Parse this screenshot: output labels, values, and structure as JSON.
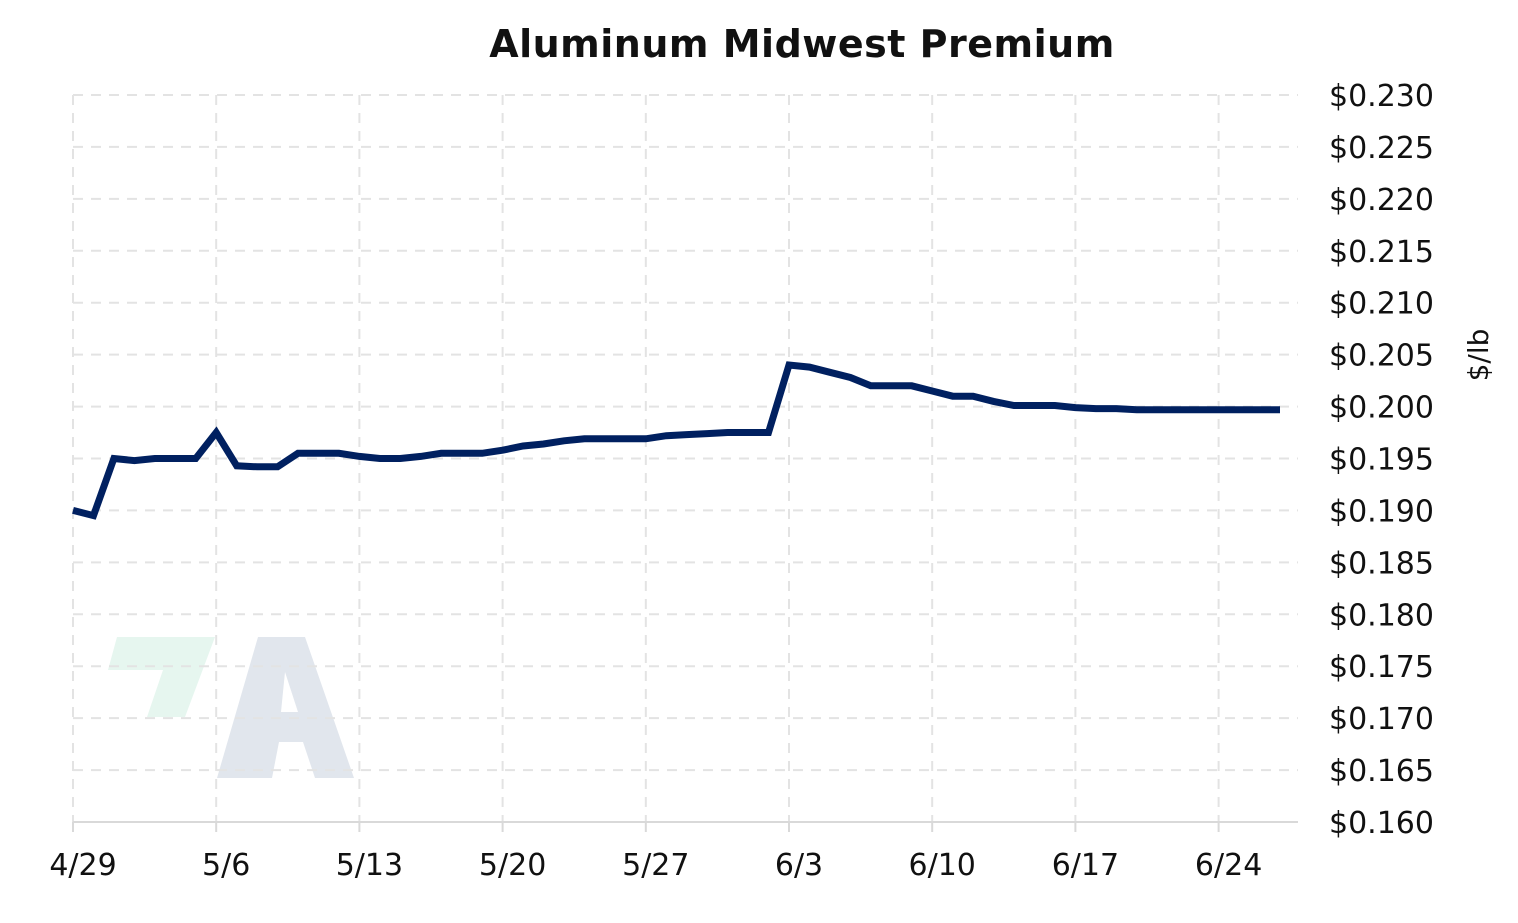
{
  "chart_data": {
    "type": "line",
    "title": "Aluminum Midwest Premium",
    "xlabel": "",
    "ylabel": "$/lb",
    "x_ticks": [
      "4/29",
      "5/6",
      "5/13",
      "5/20",
      "5/27",
      "6/3",
      "6/10",
      "6/17",
      "6/24"
    ],
    "y_ticks": [
      "$0.230",
      "$0.225",
      "$0.220",
      "$0.215",
      "$0.210",
      "$0.205",
      "$0.200",
      "$0.195",
      "$0.190",
      "$0.185",
      "$0.180",
      "$0.175",
      "$0.170",
      "$0.165",
      "$0.160"
    ],
    "ylim": [
      0.16,
      0.23
    ],
    "xlim": [
      "4/29",
      "6/28"
    ],
    "grid": true,
    "series": [
      {
        "color": "#002060",
        "x": [
          "4/29",
          "4/30",
          "5/1",
          "5/2",
          "5/3",
          "5/4",
          "5/5",
          "5/6",
          "5/7",
          "5/8",
          "5/9",
          "5/10",
          "5/11",
          "5/12",
          "5/13",
          "5/14",
          "5/15",
          "5/16",
          "5/17",
          "5/18",
          "5/19",
          "5/20",
          "5/21",
          "5/22",
          "5/23",
          "5/24",
          "5/25",
          "5/26",
          "5/27",
          "5/28",
          "5/29",
          "5/30",
          "5/31",
          "6/1",
          "6/2",
          "6/3",
          "6/4",
          "6/5",
          "6/6",
          "6/7",
          "6/8",
          "6/9",
          "6/10",
          "6/11",
          "6/12",
          "6/13",
          "6/14",
          "6/15",
          "6/16",
          "6/17",
          "6/18",
          "6/19",
          "6/20",
          "6/21",
          "6/22",
          "6/23",
          "6/24",
          "6/25",
          "6/26",
          "6/27"
        ],
        "y": [
          0.19,
          0.1895,
          0.195,
          0.1948,
          0.195,
          0.195,
          0.195,
          0.1975,
          0.1943,
          0.1942,
          0.1942,
          0.1955,
          0.1955,
          0.1955,
          0.1952,
          0.195,
          0.195,
          0.1952,
          0.1955,
          0.1955,
          0.1955,
          0.1958,
          0.1962,
          0.1964,
          0.1967,
          0.1969,
          0.1969,
          0.1969,
          0.1969,
          0.1972,
          0.1973,
          0.1974,
          0.1975,
          0.1975,
          0.1975,
          0.204,
          0.2038,
          0.2033,
          0.2028,
          0.202,
          0.202,
          0.202,
          0.2015,
          0.201,
          0.201,
          0.2005,
          0.2001,
          0.2001,
          0.2001,
          0.1999,
          0.1998,
          0.1998,
          0.1997,
          0.1997,
          0.1997,
          0.1997,
          0.1997,
          0.1997,
          0.1997,
          0.1997
        ]
      }
    ]
  },
  "watermark": {
    "text": "A",
    "colors": {
      "accent": "#e6f6ef",
      "letter": "#e1e6ed"
    }
  },
  "colors": {
    "line": "#002060",
    "grid": "#e3e3e3",
    "axis": "#d9d9d9",
    "text": "#111111"
  }
}
